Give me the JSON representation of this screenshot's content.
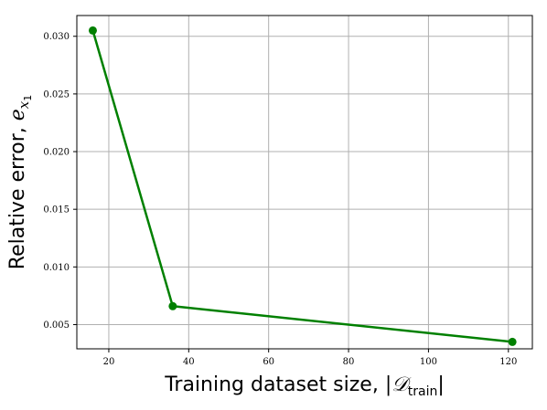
{
  "chart_data": {
    "type": "line",
    "xlabel": {
      "text": "Training dataset size, ",
      "math_open": "|",
      "math_symbol": "𝒟",
      "math_subscript": "train",
      "math_close": "|"
    },
    "ylabel": {
      "text": "Relative error, ",
      "math_symbol": "e",
      "math_subscript": "x",
      "math_subsubscript": "1"
    },
    "xlim": [
      12,
      126
    ],
    "ylim": [
      0.0029,
      0.0318
    ],
    "xticks": [
      20,
      40,
      60,
      80,
      100,
      120
    ],
    "xtick_labels": [
      "20",
      "40",
      "60",
      "80",
      "100",
      "120"
    ],
    "yticks": [
      0.005,
      0.01,
      0.015,
      0.02,
      0.025,
      0.03
    ],
    "ytick_labels": [
      "0.005",
      "0.010",
      "0.015",
      "0.020",
      "0.025",
      "0.030"
    ],
    "grid": true,
    "legend": false,
    "series": [
      {
        "color": "#008000",
        "marker": "circle",
        "x": [
          16,
          36,
          121
        ],
        "y": [
          0.0305,
          0.0066,
          0.0035
        ]
      }
    ]
  }
}
